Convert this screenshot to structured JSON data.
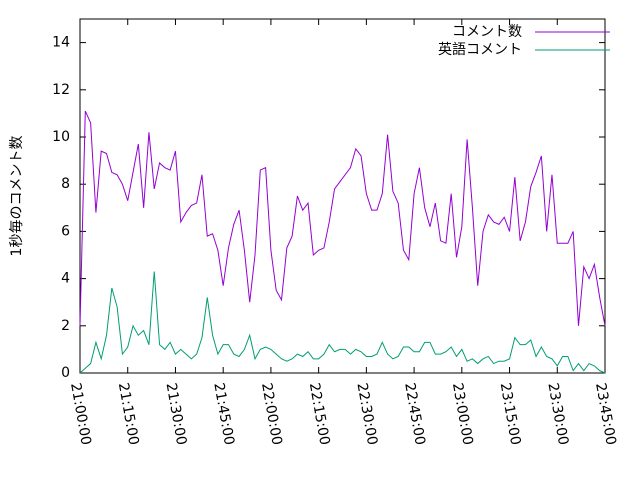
{
  "chart_data": {
    "type": "line",
    "y_label": "1秒毎のコメント数",
    "x": [
      "21:00:00",
      "21:01:40",
      "21:03:20",
      "21:05:00",
      "21:06:40",
      "21:08:20",
      "21:10:00",
      "21:11:40",
      "21:13:20",
      "21:15:00",
      "21:16:40",
      "21:18:20",
      "21:20:00",
      "21:21:40",
      "21:23:20",
      "21:25:00",
      "21:26:40",
      "21:28:20",
      "21:30:00",
      "21:31:40",
      "21:33:20",
      "21:35:00",
      "21:36:40",
      "21:38:20",
      "21:40:00",
      "21:41:40",
      "21:43:20",
      "21:45:00",
      "21:46:40",
      "21:48:20",
      "21:50:00",
      "21:51:40",
      "21:53:20",
      "21:55:00",
      "21:56:40",
      "21:58:20",
      "22:00:00",
      "22:01:40",
      "22:03:20",
      "22:05:00",
      "22:06:40",
      "22:08:20",
      "22:10:00",
      "22:11:40",
      "22:13:20",
      "22:15:00",
      "22:16:40",
      "22:18:20",
      "22:20:00",
      "22:21:40",
      "22:23:20",
      "22:25:00",
      "22:26:40",
      "22:28:20",
      "22:30:00",
      "22:31:40",
      "22:33:20",
      "22:35:00",
      "22:36:40",
      "22:38:20",
      "22:40:00",
      "22:41:40",
      "22:43:20",
      "22:45:00",
      "22:46:40",
      "22:48:20",
      "22:50:00",
      "22:51:40",
      "22:53:20",
      "22:55:00",
      "22:56:40",
      "22:58:20",
      "23:00:00",
      "23:01:40",
      "23:03:20",
      "23:05:00",
      "23:06:40",
      "23:08:20",
      "23:10:00",
      "23:11:40",
      "23:13:20",
      "23:15:00",
      "23:16:40",
      "23:18:20",
      "23:20:00",
      "23:21:40",
      "23:23:20",
      "23:25:00",
      "23:26:40",
      "23:28:20",
      "23:30:00",
      "23:31:40",
      "23:33:20",
      "23:35:00",
      "23:36:40",
      "23:38:20",
      "23:40:00",
      "23:41:40",
      "23:43:20",
      "23:45:00"
    ],
    "series": [
      {
        "name": "コメント数",
        "color": "#9400d3",
        "values": [
          2.0,
          11.1,
          10.6,
          6.8,
          9.4,
          9.3,
          8.5,
          8.4,
          8.0,
          7.3,
          8.5,
          9.7,
          7.0,
          10.2,
          7.8,
          8.9,
          8.7,
          8.6,
          9.4,
          6.4,
          6.8,
          7.1,
          7.2,
          8.4,
          5.8,
          5.9,
          5.2,
          3.7,
          5.3,
          6.3,
          6.9,
          5.2,
          3.0,
          5.0,
          8.6,
          8.7,
          5.2,
          3.5,
          3.1,
          5.3,
          5.8,
          7.5,
          6.9,
          7.2,
          5.0,
          5.2,
          5.3,
          6.4,
          7.8,
          8.1,
          8.4,
          8.7,
          9.5,
          9.2,
          7.6,
          6.9,
          6.9,
          7.6,
          10.1,
          7.7,
          7.2,
          5.2,
          4.8,
          7.6,
          8.7,
          7.0,
          6.2,
          7.2,
          5.6,
          5.5,
          7.6,
          4.9,
          6.2,
          9.9,
          7.0,
          3.7,
          6.0,
          6.7,
          6.4,
          6.3,
          6.6,
          6.0,
          8.3,
          5.6,
          6.4,
          7.9,
          8.5,
          9.2,
          6.0,
          8.4,
          5.5,
          5.5,
          5.5,
          6.0,
          2.0,
          4.5,
          4.0,
          4.6,
          3.2,
          2.0
        ]
      },
      {
        "name": "英語コメント",
        "color": "#009e73",
        "values": [
          0,
          0.2,
          0.4,
          1.3,
          0.6,
          1.6,
          3.6,
          2.8,
          0.8,
          1.1,
          2.0,
          1.6,
          1.8,
          1.2,
          4.3,
          1.2,
          1.0,
          1.3,
          0.8,
          1.0,
          0.8,
          0.6,
          0.8,
          1.5,
          3.2,
          1.6,
          0.8,
          1.2,
          1.2,
          0.8,
          0.7,
          1.0,
          1.6,
          0.6,
          1.0,
          1.1,
          1.0,
          0.8,
          0.6,
          0.5,
          0.6,
          0.8,
          0.7,
          0.9,
          0.6,
          0.6,
          0.8,
          1.2,
          0.9,
          1.0,
          1.0,
          0.8,
          1.0,
          0.9,
          0.7,
          0.7,
          0.8,
          1.3,
          0.8,
          0.6,
          0.7,
          1.1,
          1.1,
          0.9,
          0.9,
          1.3,
          1.3,
          0.8,
          0.8,
          0.9,
          1.1,
          0.7,
          1.0,
          0.5,
          0.6,
          0.4,
          0.6,
          0.7,
          0.4,
          0.5,
          0.5,
          0.6,
          1.5,
          1.2,
          1.2,
          1.4,
          0.7,
          1.1,
          0.7,
          0.6,
          0.3,
          0.7,
          0.7,
          0.1,
          0.4,
          0.1,
          0.4,
          0.3,
          0.1,
          0
        ]
      }
    ],
    "xlim": [
      "21:00:00",
      "23:45:00"
    ],
    "xticks": [
      "21:00:00",
      "21:15:00",
      "21:30:00",
      "21:45:00",
      "22:00:00",
      "22:15:00",
      "22:30:00",
      "22:45:00",
      "23:00:00",
      "23:15:00",
      "23:30:00",
      "23:45:00"
    ],
    "ylim": [
      0,
      15
    ],
    "yticks": [
      0,
      2,
      4,
      6,
      8,
      10,
      12,
      14
    ],
    "legend": "top-right"
  }
}
